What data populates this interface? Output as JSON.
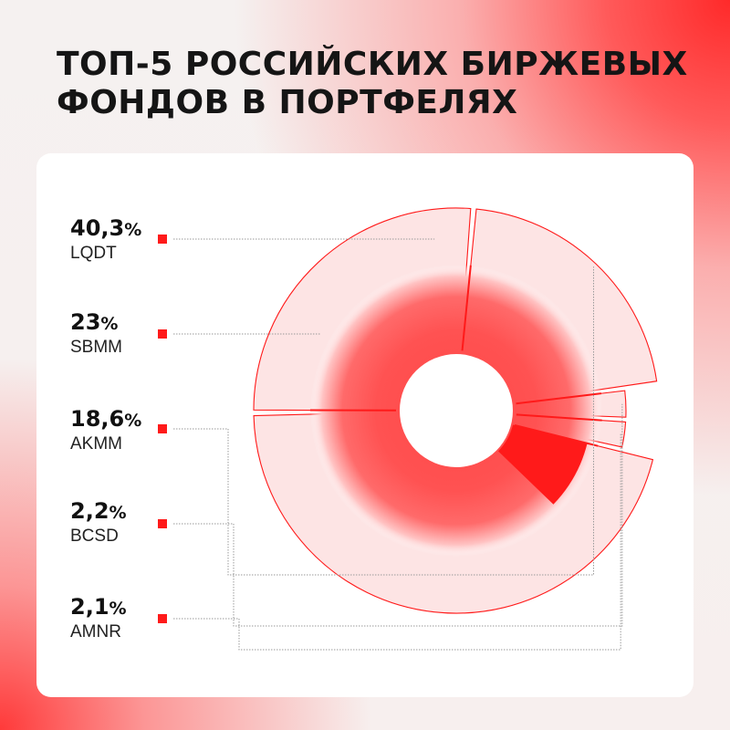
{
  "title_lines": [
    "ТОП-5 РОССИЙСКИХ БИРЖЕВЫХ",
    "ФОНДОВ В ПОРТФЕЛЯХ"
  ],
  "colors": {
    "accent": "#ff1a1a",
    "fill": "#fde4e4",
    "text": "#111111"
  },
  "chart_data": {
    "type": "pie",
    "title": "ТОП-5 РОССИЙСКИХ БИРЖЕВЫХ ФОНДОВ В ПОРТФЕЛЯХ",
    "categories": [
      "LQDT",
      "SBMM",
      "AKMM",
      "BCSD",
      "AMNR"
    ],
    "values": [
      40.3,
      23,
      18.6,
      2.2,
      2.1
    ],
    "value_labels": [
      {
        "num": "40,3",
        "unit": "%"
      },
      {
        "num": "23",
        "unit": "%"
      },
      {
        "num": "18,6",
        "unit": "%"
      },
      {
        "num": "2,2",
        "unit": "%"
      },
      {
        "num": "2,1",
        "unit": "%"
      }
    ],
    "legend_placement": "left"
  }
}
